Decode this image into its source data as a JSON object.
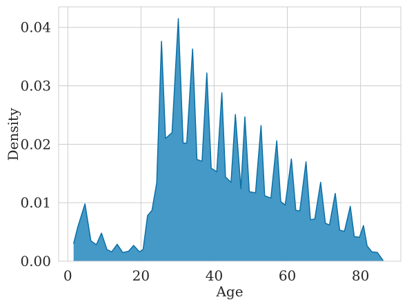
{
  "chart_data": {
    "type": "area",
    "title": "",
    "xlabel": "Age",
    "ylabel": "Density",
    "xlim": [
      -2.5,
      91
    ],
    "ylim": [
      0,
      0.0435
    ],
    "x_ticks": [
      0,
      20,
      40,
      60,
      80
    ],
    "x_tick_labels": [
      "0",
      "20",
      "40",
      "60",
      "80"
    ],
    "y_ticks": [
      0,
      0.01,
      0.02,
      0.03,
      0.04
    ],
    "y_tick_labels": [
      "0.00",
      "0.01",
      "0.02",
      "0.03",
      "0.04"
    ],
    "grid": true,
    "legend": "none",
    "colors": {
      "fill": "#3a94c4",
      "line": "#0b6fa5",
      "grid": "#cccccc"
    },
    "series": [
      {
        "x": [
          1.6,
          2.7,
          4.7,
          6.3,
          7.8,
          9.2,
          10.7,
          12.0,
          13.5,
          15.0,
          16.6,
          18.0,
          19.6,
          20.6,
          21.8,
          23.0,
          24.3,
          25.6,
          26.7,
          28.5,
          30.2,
          31.5,
          32.5,
          34.1,
          35.3,
          36.7,
          38.0,
          39.2,
          40.7,
          42.1,
          43.1,
          44.6,
          45.8,
          47.3,
          48.4,
          49.6,
          51.3,
          52.8,
          53.8,
          55.5,
          57.1,
          58.2,
          59.4,
          61.1,
          62.3,
          63.4,
          65.1,
          66.3,
          67.5,
          69.1,
          70.4,
          71.5,
          73.1,
          74.3,
          75.6,
          77.2,
          78.3,
          79.7,
          80.8,
          81.8,
          83.1,
          84.6,
          86.2
        ],
        "y": [
          0.003,
          0.0058,
          0.0098,
          0.0035,
          0.0028,
          0.0048,
          0.002,
          0.0016,
          0.0029,
          0.0015,
          0.0017,
          0.0027,
          0.0016,
          0.002,
          0.0078,
          0.0087,
          0.0134,
          0.0376,
          0.021,
          0.022,
          0.0415,
          0.0202,
          0.0202,
          0.0363,
          0.0174,
          0.0171,
          0.0322,
          0.0159,
          0.0153,
          0.0288,
          0.0144,
          0.0135,
          0.0251,
          0.0124,
          0.0247,
          0.0119,
          0.0117,
          0.0232,
          0.0112,
          0.0108,
          0.0206,
          0.0102,
          0.0096,
          0.0175,
          0.0087,
          0.0086,
          0.017,
          0.0071,
          0.0072,
          0.0135,
          0.0065,
          0.0062,
          0.0116,
          0.0053,
          0.0051,
          0.0094,
          0.0042,
          0.0041,
          0.0061,
          0.0026,
          0.0016,
          0.0015,
          0.0001
        ]
      }
    ]
  }
}
